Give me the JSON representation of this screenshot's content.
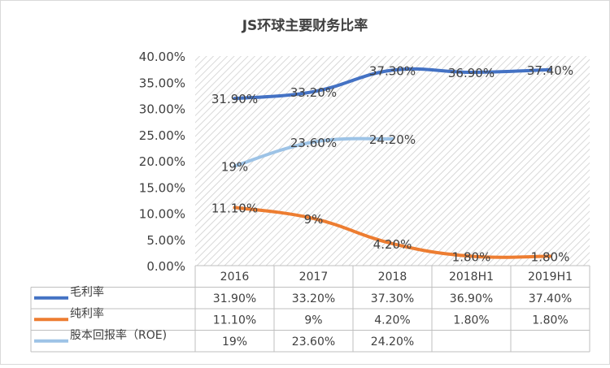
{
  "chart_data": {
    "type": "line",
    "title": "JS环球主要财务比率",
    "categories": [
      "2016",
      "2017",
      "2018",
      "2018H1",
      "2019H1"
    ],
    "ylim": [
      0,
      40
    ],
    "yticks": [
      "0.00%",
      "5.00%",
      "10.00%",
      "15.00%",
      "20.00%",
      "25.00%",
      "30.00%",
      "35.00%",
      "40.00%"
    ],
    "series": [
      {
        "name": "毛利率",
        "color": "#4472C4",
        "values": [
          31.9,
          33.2,
          37.3,
          36.9,
          37.4
        ],
        "labels": [
          "31.90%",
          "33.20%",
          "37.30%",
          "36.90%",
          "37.40%"
        ]
      },
      {
        "name": "纯利率",
        "color": "#ED7D31",
        "values": [
          11.1,
          9,
          4.2,
          1.8,
          1.8
        ],
        "labels": [
          "11.10%",
          "9%",
          "4.20%",
          "1.80%",
          "1.80%"
        ]
      },
      {
        "name": "股本回报率（ROE)",
        "color": "#9DC3E6",
        "values": [
          19,
          23.6,
          24.2,
          null,
          null
        ],
        "labels": [
          "19%",
          "23.60%",
          "24.20%",
          "",
          ""
        ]
      }
    ],
    "legend": "data-table-bottom"
  }
}
